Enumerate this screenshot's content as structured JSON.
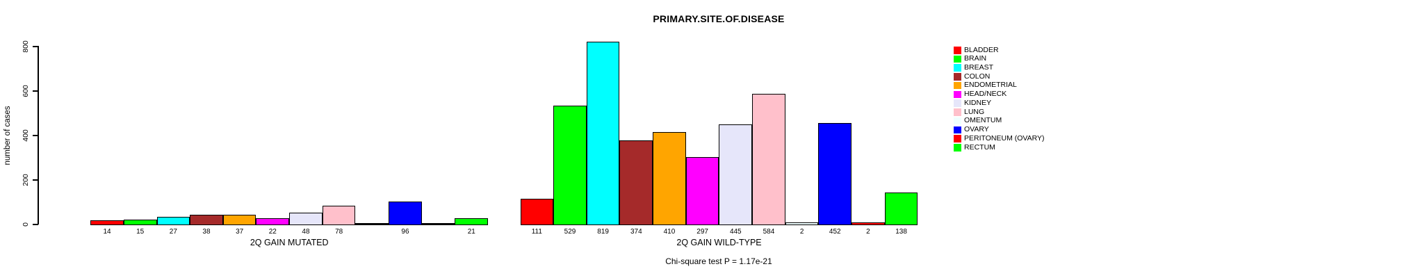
{
  "title": "PRIMARY.SITE.OF.DISEASE",
  "y_axis": {
    "label": "number of cases"
  },
  "footer": "Chi-square test P = 1.17e-21",
  "chart_data": {
    "type": "bar",
    "title": "PRIMARY.SITE.OF.DISEASE",
    "xlabel": "",
    "ylabel": "number of cases",
    "ylim": [
      0,
      800
    ],
    "yticks": [
      0,
      200,
      400,
      600,
      800
    ],
    "grid": false,
    "legend_position": "right",
    "categories": [
      "BLADDER",
      "BRAIN",
      "BREAST",
      "COLON",
      "ENDOMETRIAL",
      "HEAD/NECK",
      "KIDNEY",
      "LUNG",
      "OMENTUM",
      "OVARY",
      "PERITONEUM (OVARY)",
      "RECTUM"
    ],
    "colors": [
      "#FF0000",
      "#00FF00",
      "#00FFFF",
      "#A52A2A",
      "#FFA500",
      "#FF00FF",
      "#E6E6FA",
      "#FFC0CB",
      "#F0FFFF",
      "#0000FF",
      "#FF0000",
      "#00FF00"
    ],
    "groups": [
      {
        "label": "2Q GAIN MUTATED",
        "values": [
          14,
          15,
          27,
          38,
          37,
          22,
          48,
          78,
          0,
          96,
          0,
          21
        ],
        "bar_labels": [
          "14",
          "15",
          "27",
          "38",
          "37",
          "22",
          "48",
          "78",
          "",
          "96",
          "",
          "21"
        ]
      },
      {
        "label": "2Q GAIN WILD-TYPE",
        "values": [
          111,
          529,
          819,
          374,
          410,
          297,
          445,
          584,
          2,
          452,
          2,
          138
        ],
        "bar_labels": [
          "111",
          "529",
          "819",
          "374",
          "410",
          "297",
          "445",
          "584",
          "2",
          "452",
          "2",
          "138"
        ]
      }
    ],
    "legend_entries": [
      {
        "label": "BLADDER",
        "color": "#FF0000"
      },
      {
        "label": "BRAIN",
        "color": "#00FF00"
      },
      {
        "label": "BREAST",
        "color": "#00FFFF"
      },
      {
        "label": "COLON",
        "color": "#A52A2A"
      },
      {
        "label": "ENDOMETRIAL",
        "color": "#FFA500"
      },
      {
        "label": "HEAD/NECK",
        "color": "#FF00FF"
      },
      {
        "label": "KIDNEY",
        "color": "#E6E6FA"
      },
      {
        "label": "LUNG",
        "color": "#FFC0CB"
      },
      {
        "label": "OMENTUM",
        "color": "#F0FFFF"
      },
      {
        "label": "OVARY",
        "color": "#0000FF"
      },
      {
        "label": "PERITONEUM (OVARY)",
        "color": "#FF0000"
      },
      {
        "label": "RECTUM",
        "color": "#00FF00"
      }
    ],
    "annotation": "Chi-square test P = 1.17e-21"
  }
}
